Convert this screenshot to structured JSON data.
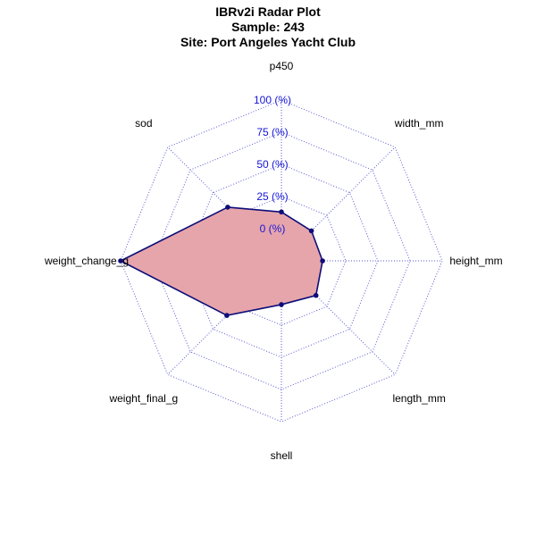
{
  "header": {
    "title": "IBRv2i Radar Plot",
    "subtitle_sample": "Sample: 243",
    "subtitle_site": "Site: Port Angeles Yacht Club"
  },
  "colors": {
    "polygon_fill": "#e6a5aa",
    "polygon_stroke": "#0d0d7a",
    "point": "#0d0d7a",
    "grid": "#5a5ad0",
    "ring_label": "#1515d8",
    "axis_label": "#000000"
  },
  "chart_data": {
    "type": "radar",
    "title": "IBRv2i Radar Plot\nSample: 243\nSite: Port Angeles Yacht Club",
    "axes": [
      "p450",
      "width_mm",
      "height_mm",
      "length_mm",
      "shell",
      "weight_final_g",
      "weight_change_g",
      "sod"
    ],
    "ring_labels": [
      "0 (%)",
      "25 (%)",
      "50 (%)",
      "75 (%)",
      "100 (%)"
    ],
    "ring_values": [
      0,
      25,
      50,
      75,
      100
    ],
    "range": [
      0,
      100
    ],
    "series": [
      {
        "values": [
          13,
          8,
          7,
          13,
          9,
          35,
          100,
          34
        ]
      }
    ],
    "grid": true
  }
}
